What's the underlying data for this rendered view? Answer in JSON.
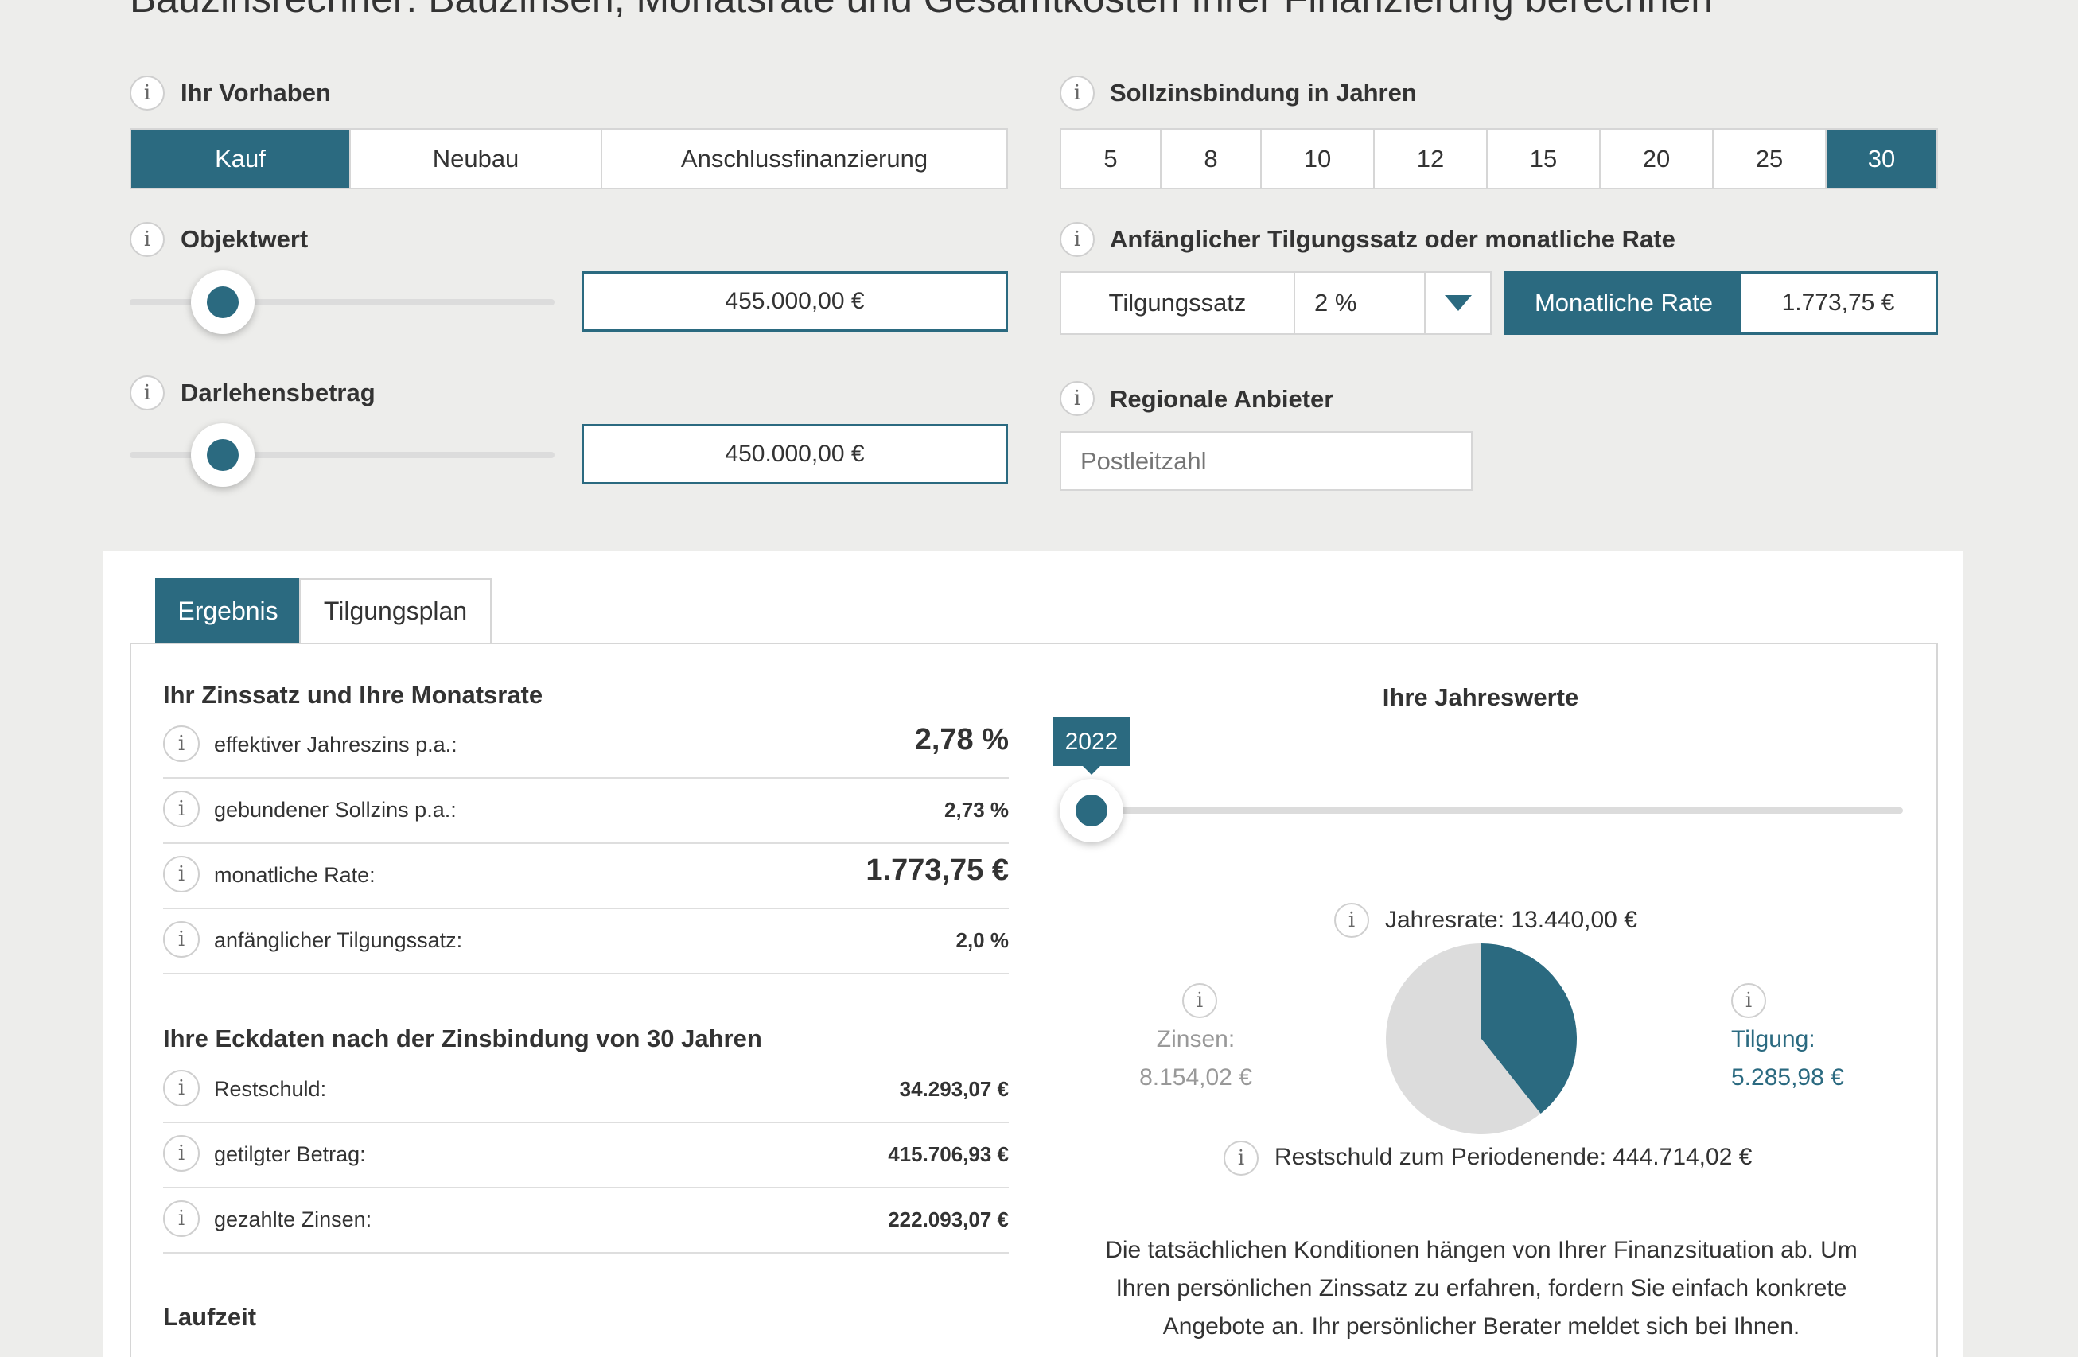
{
  "page": {
    "title": "Bauzinsrechner: Bauzinsen, Monatsrate und Gesamtkosten Ihrer Finanzierung berechnen"
  },
  "vorhaben": {
    "label": "Ihr Vorhaben",
    "options": [
      "Kauf",
      "Neubau",
      "Anschlussfinanzierung"
    ],
    "selected": "Kauf"
  },
  "sollzins": {
    "label": "Sollzinsbindung in Jahren",
    "options": [
      "5",
      "8",
      "10",
      "12",
      "15",
      "20",
      "25",
      "30"
    ],
    "selected": "30"
  },
  "objektwert": {
    "label": "Objektwert",
    "value": "455.000,00 €",
    "slider_fraction": 0.22
  },
  "darlehen": {
    "label": "Darlehensbetrag",
    "value": "450.000,00 €",
    "slider_fraction": 0.22
  },
  "tilgung": {
    "label": "Anfänglicher Tilgungssatz oder monatliche Rate",
    "tilgungssatz_label": "Tilgungssatz",
    "tilgungssatz_value": "2 %",
    "rate_label": "Monatliche Rate",
    "rate_value": "1.773,75 €"
  },
  "regional": {
    "label": "Regionale Anbieter",
    "placeholder": "Postleitzahl"
  },
  "tabs": [
    "Ergebnis",
    "Tilgungsplan"
  ],
  "active_tab": "Ergebnis",
  "zinssatz": {
    "heading": "Ihr Zinssatz und Ihre Monatsrate",
    "rows": [
      {
        "label": "effektiver Jahreszins p.a.:",
        "value": "2,78 %"
      },
      {
        "label": "gebundener Sollzins p.a.:",
        "value": "2,73 %"
      },
      {
        "label": "monatliche Rate:",
        "value": "1.773,75 €"
      },
      {
        "label": "anfänglicher Tilgungssatz:",
        "value": "2,0 %"
      }
    ]
  },
  "eckdaten": {
    "heading": "Ihre Eckdaten nach der Zinsbindung von 30 Jahren",
    "rows": [
      {
        "label": "Restschuld:",
        "value": "34.293,07 €"
      },
      {
        "label": "getilgter Betrag:",
        "value": "415.706,93 €"
      },
      {
        "label": "gezahlte Zinsen:",
        "value": "222.093,07 €"
      }
    ]
  },
  "laufzeit": {
    "heading": "Laufzeit"
  },
  "jahreswerte": {
    "heading": "Ihre Jahreswerte",
    "year": "2022",
    "year_slider_fraction": 0.0,
    "jahresrate": "Jahresrate: 13.440,00 €",
    "zinsen_label": "Zinsen:",
    "zinsen_value": "8.154,02 €",
    "tilgung_label": "Tilgung:",
    "tilgung_value": "5.285,98 €",
    "restschuld": "Restschuld zum Periodenende: 444.714,02 €",
    "note": [
      "Die tatsächlichen Konditionen hängen von Ihrer Finanzsituation ab. Um",
      "Ihren persönlichen Zinssatz zu erfahren, fordern Sie einfach konkrete",
      "Angebote an. Ihr persönlicher Berater meldet sich bei Ihnen."
    ]
  },
  "colors": {
    "accent": "#2b6a80",
    "background": "#ededeb",
    "pie_zinsen": "#dcdcdc",
    "pie_tilgung": "#2b6a80"
  },
  "chart_data": {
    "type": "pie",
    "title": "",
    "slices": [
      {
        "name": "Zinsen",
        "value": 8154.02
      },
      {
        "name": "Tilgung",
        "value": 5285.98
      }
    ]
  }
}
